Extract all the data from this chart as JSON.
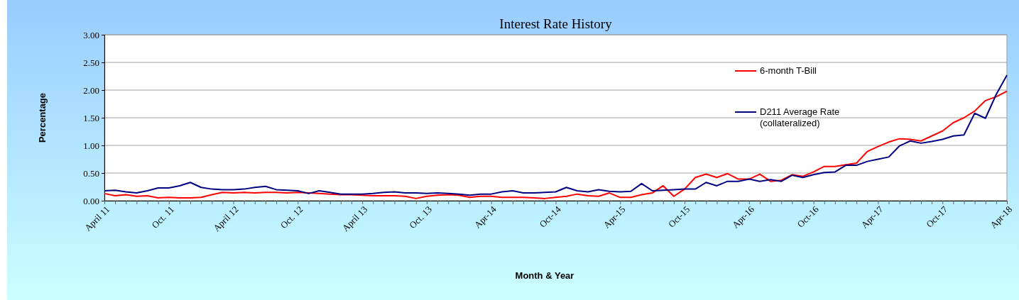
{
  "chart_data": {
    "type": "line",
    "title": "Interest Rate History",
    "xlabel": "Month & Year",
    "ylabel": "Percentage",
    "categories": [
      "April 11",
      null,
      null,
      null,
      null,
      null,
      "Oct. 11",
      null,
      null,
      null,
      null,
      null,
      "April 12",
      null,
      null,
      null,
      null,
      null,
      "Oct. 12",
      null,
      null,
      null,
      null,
      null,
      "April 13",
      null,
      null,
      null,
      null,
      null,
      "Oct. 13",
      null,
      null,
      null,
      null,
      null,
      "Apr-14",
      null,
      null,
      null,
      null,
      null,
      "Oct-14",
      null,
      null,
      null,
      null,
      null,
      "Apr-15",
      null,
      null,
      null,
      null,
      null,
      "Oct-15",
      null,
      null,
      null,
      null,
      null,
      "Apr-16",
      null,
      null,
      null,
      null,
      null,
      "Oct-16",
      null,
      null,
      null,
      null,
      null,
      "Apr-17",
      null,
      null,
      null,
      null,
      null,
      "Oct-17",
      null,
      null,
      null,
      null,
      null,
      "Apr-18"
    ],
    "series": [
      {
        "name": "6-month T-Bill",
        "color": "#ff0000",
        "values": [
          0.13,
          0.09,
          0.11,
          0.08,
          0.09,
          0.05,
          0.06,
          0.05,
          0.05,
          0.06,
          0.11,
          0.15,
          0.14,
          0.15,
          0.14,
          0.15,
          0.15,
          0.14,
          0.15,
          0.14,
          0.13,
          0.12,
          0.11,
          0.11,
          0.1,
          0.09,
          0.09,
          0.09,
          0.08,
          0.04,
          0.08,
          0.1,
          0.11,
          0.1,
          0.06,
          0.08,
          0.08,
          0.06,
          0.06,
          0.06,
          0.05,
          0.04,
          0.06,
          0.08,
          0.12,
          0.09,
          0.08,
          0.14,
          0.06,
          0.06,
          0.11,
          0.14,
          0.27,
          0.08,
          0.21,
          0.42,
          0.48,
          0.42,
          0.49,
          0.39,
          0.39,
          0.48,
          0.35,
          0.37,
          0.47,
          0.44,
          0.52,
          0.62,
          0.62,
          0.65,
          0.68,
          0.89,
          0.98,
          1.06,
          1.12,
          1.11,
          1.08,
          1.17,
          1.26,
          1.41,
          1.5,
          1.62,
          1.81,
          1.88,
          1.98
        ]
      },
      {
        "name": "D211 Average Rate (collateralized)",
        "color": "#000080",
        "values": [
          0.18,
          0.19,
          0.16,
          0.14,
          0.18,
          0.23,
          0.23,
          0.27,
          0.33,
          0.24,
          0.21,
          0.2,
          0.2,
          0.21,
          0.24,
          0.26,
          0.2,
          0.19,
          0.18,
          0.13,
          0.18,
          0.15,
          0.12,
          0.12,
          0.12,
          0.13,
          0.15,
          0.16,
          0.14,
          0.14,
          0.13,
          0.14,
          0.13,
          0.12,
          0.1,
          0.12,
          0.12,
          0.16,
          0.18,
          0.14,
          0.14,
          0.15,
          0.16,
          0.24,
          0.18,
          0.16,
          0.2,
          0.17,
          0.16,
          0.17,
          0.31,
          0.18,
          0.19,
          0.2,
          0.21,
          0.21,
          0.33,
          0.27,
          0.35,
          0.35,
          0.39,
          0.35,
          0.38,
          0.35,
          0.46,
          0.42,
          0.47,
          0.51,
          0.52,
          0.64,
          0.64,
          0.71,
          0.75,
          0.79,
          0.99,
          1.08,
          1.04,
          1.07,
          1.11,
          1.17,
          1.19,
          1.58,
          1.49,
          1.92,
          2.27
        ]
      }
    ],
    "ylim": [
      0,
      3
    ],
    "yticks": [
      {
        "value": 0,
        "label": "0.00"
      },
      {
        "value": 0.5,
        "label": "0.50"
      },
      {
        "value": 1,
        "label": "1.00"
      },
      {
        "value": 1.5,
        "label": "1.50"
      },
      {
        "value": 2,
        "label": "2.00"
      },
      {
        "value": 2.5,
        "label": "2.50"
      },
      {
        "value": 3,
        "label": "3.00"
      }
    ],
    "grid": "y",
    "legend": "top right",
    "marker": "none",
    "line_style": "solid"
  }
}
